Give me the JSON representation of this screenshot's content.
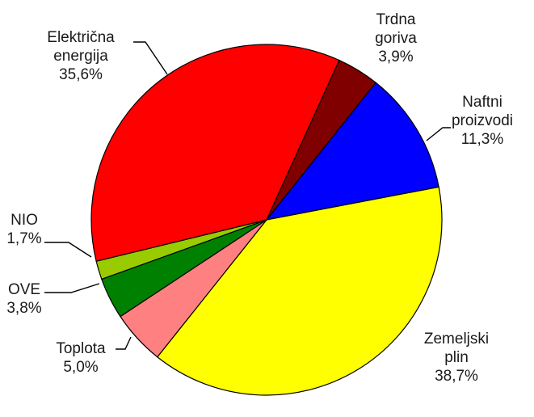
{
  "chart_data": {
    "type": "pie",
    "title": "",
    "legend": "none",
    "slices": [
      {
        "label": [
          "Trdna",
          "goriva"
        ],
        "value_text": "3,9%",
        "value": 3.9,
        "color": "#800000"
      },
      {
        "label": [
          "Naftni",
          "proizvodi"
        ],
        "value_text": "11,3%",
        "value": 11.3,
        "color": "#0000ff"
      },
      {
        "label": [
          "Zemeljski",
          "plin"
        ],
        "value_text": "38,7%",
        "value": 38.7,
        "color": "#ffff00"
      },
      {
        "label": [
          "Toplota"
        ],
        "value_text": "5,0%",
        "value": 5.0,
        "color": "#ff8080"
      },
      {
        "label": [
          "OVE"
        ],
        "value_text": "3,8%",
        "value": 3.8,
        "color": "#008000"
      },
      {
        "label": [
          "NIO"
        ],
        "value_text": "1,7%",
        "value": 1.7,
        "color": "#99cc00"
      },
      {
        "label": [
          "Električna",
          "energija"
        ],
        "value_text": "35,6%",
        "value": 35.6,
        "color": "#ff0000"
      }
    ]
  }
}
